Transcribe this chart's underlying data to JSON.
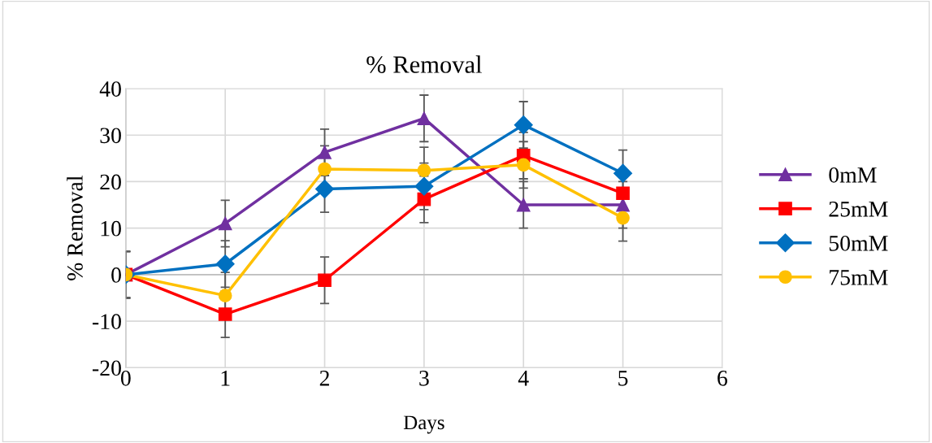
{
  "chart_data": {
    "type": "line",
    "title": "% Removal",
    "xlabel": "Days",
    "ylabel": "% Removal",
    "x": [
      0,
      1,
      2,
      3,
      4,
      5
    ],
    "xlim": [
      0,
      6
    ],
    "xticks": [
      0,
      1,
      2,
      3,
      4,
      5,
      6
    ],
    "ylim": [
      -20,
      40
    ],
    "yticks": [
      -20,
      -10,
      0,
      10,
      20,
      30,
      40
    ],
    "grid": true,
    "legend": "right",
    "line_style": "solid",
    "series": [
      {
        "name": "0mM",
        "color": "#7030a0",
        "marker": "triangle",
        "values": [
          0,
          11,
          26.3,
          33.6,
          15,
          15
        ],
        "errors": [
          5,
          5,
          5,
          5,
          5,
          5
        ]
      },
      {
        "name": "25mM",
        "color": "#ff0000",
        "marker": "square",
        "values": [
          0,
          -8.5,
          -1.2,
          16.2,
          25.6,
          17.5
        ],
        "errors": [
          5,
          5,
          5,
          5,
          5,
          null
        ]
      },
      {
        "name": "50mM",
        "color": "#0070c0",
        "marker": "diamond",
        "values": [
          0,
          2.3,
          18.4,
          19,
          32.2,
          21.8
        ],
        "errors": [
          5,
          5,
          5,
          5,
          5,
          5
        ]
      },
      {
        "name": "75mM",
        "color": "#ffc000",
        "marker": "circle",
        "values": [
          0,
          -4.5,
          22.7,
          22.4,
          23.6,
          12.2
        ],
        "errors": [
          5,
          5,
          5,
          5,
          5,
          5
        ]
      }
    ]
  }
}
